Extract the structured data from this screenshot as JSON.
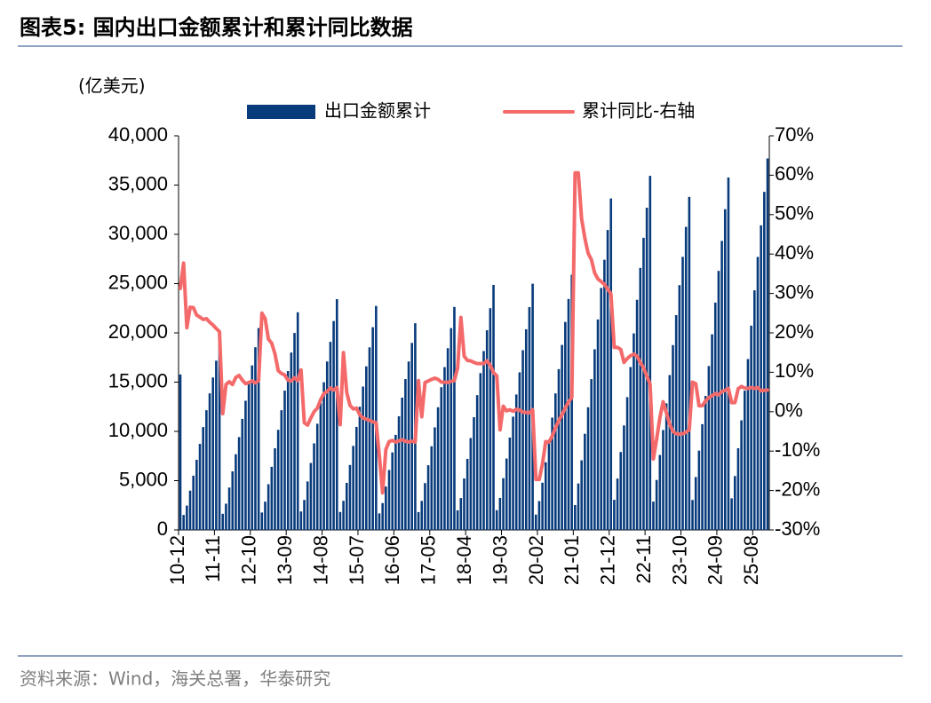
{
  "chart_data": {
    "type": "bar",
    "title": "图表5:  国内出口金额累计和累计同比数据",
    "y_unit": "(亿美元)",
    "source": "资料来源：Wind，海关总署，华泰研究",
    "categories": [
      "10-12",
      null,
      null,
      null,
      null,
      null,
      null,
      null,
      null,
      null,
      null,
      "11-11",
      null,
      null,
      null,
      null,
      null,
      null,
      null,
      null,
      null,
      null,
      "12-10",
      null,
      null,
      null,
      null,
      null,
      null,
      null,
      null,
      null,
      null,
      "13-09",
      null,
      null,
      null,
      null,
      null,
      null,
      null,
      null,
      null,
      null,
      "14-08",
      null,
      null,
      null,
      null,
      null,
      null,
      null,
      null,
      null,
      null,
      "15-07",
      null,
      null,
      null,
      null,
      null,
      null,
      null,
      null,
      null,
      null,
      "16-06",
      null,
      null,
      null,
      null,
      null,
      null,
      null,
      null,
      null,
      null,
      "17-05",
      null,
      null,
      null,
      null,
      null,
      null,
      null,
      null,
      null,
      null,
      "18-04",
      null,
      null,
      null,
      null,
      null,
      null,
      null,
      null,
      null,
      null,
      "19-03",
      null,
      null,
      null,
      null,
      null,
      null,
      null,
      null,
      null,
      null,
      "20-02",
      null,
      null,
      null,
      null,
      null,
      null,
      null,
      null,
      null,
      null,
      "21-01",
      null,
      null,
      null,
      null,
      null,
      null,
      null,
      null,
      null,
      null,
      "21-12",
      null,
      null,
      null,
      null,
      null,
      null,
      null,
      null,
      null,
      null,
      "22-11",
      null,
      null,
      null,
      null,
      null,
      null,
      null,
      null,
      null,
      null,
      "23-10",
      null,
      null,
      null,
      null,
      null,
      null,
      null,
      null,
      null,
      null,
      "24-09",
      null,
      null,
      null,
      null,
      null,
      null,
      null,
      null,
      null,
      null,
      "25-08",
      null,
      null,
      null,
      null
    ],
    "series": [
      {
        "name": "出口金额累计",
        "type": "bar",
        "color": "#083b7c",
        "values": [
          15778,
          1519,
          2468,
          3987,
          5505,
          7119,
          8733,
          10441,
          12150,
          13858,
          15472,
          17181,
          18984,
          1639,
          2663,
          4302,
          5941,
          7683,
          9424,
          11268,
          13112,
          14956,
          16697,
          18541,
          20487,
          1767,
          2872,
          4639,
          6406,
          8284,
          10161,
          12150,
          14138,
          16126,
          18003,
          19991,
          22090,
          1874,
          3045,
          4919,
          6793,
          8784,
          10775,
          12883,
          14991,
          17099,
          19090,
          21198,
          23423,
          1819,
          2956,
          4774,
          6593,
          8526,
          10458,
          12504,
          14550,
          16597,
          18529,
          20575,
          22735,
          1678,
          2727,
          4405,
          6083,
          7866,
          9649,
          11537,
          13425,
          15312,
          17095,
          18983,
          20976,
          1811,
          2942,
          4753,
          6564,
          8487,
          10411,
          12448,
          14485,
          16522,
          18446,
          20483,
          22633,
          1989,
          3233,
          5222,
          7211,
          9325,
          11439,
          13677,
          15915,
          18153,
          20267,
          22505,
          24867,
          2000,
          3249,
          5248,
          7247,
          9371,
          11495,
          13745,
          15994,
          18243,
          20367,
          22616,
          24990,
          1554,
          2927,
          4792,
          6864,
          9065,
          11396,
          13857,
          16317,
          18778,
          21109,
          23440,
          25900,
          2523,
          4710,
          7064,
          9756,
          12447,
          15306,
          18334,
          21361,
          24557,
          27417,
          30444,
          33640,
          3055,
          5211,
          7906,
          10601,
          13476,
          16531,
          19944,
          23358,
          26593,
          29647,
          32702,
          35936,
          2873,
          5070,
          7605,
          10140,
          12844,
          15717,
          18759,
          21801,
          24843,
          27716,
          30758,
          33800,
          3041,
          5366,
          8049,
          10732,
          13593,
          16634,
          19853,
          23073,
          26292,
          29333,
          32553,
          35772,
          3205,
          5467,
          8294,
          11122,
          14138,
          17342,
          20735,
          24317,
          27710,
          30914,
          34307,
          37700
        ]
      },
      {
        "name": "累计同比-右轴",
        "type": "line",
        "axis": "y2",
        "color": "#f46a6a",
        "values": [
          31.3,
          37.7,
          21.3,
          26.5,
          26.4,
          24.5,
          24,
          23.4,
          23.6,
          22.7,
          22,
          21.1,
          20.3,
          -0.5,
          6.9,
          7.6,
          6.9,
          8.7,
          9.2,
          8,
          7.1,
          7.4,
          7.8,
          7.3,
          7.9,
          25,
          23.6,
          18.4,
          17.4,
          14.7,
          10.4,
          9.7,
          9.3,
          8,
          7.8,
          8.6,
          7.9,
          10.6,
          -2.8,
          -3.4,
          -1.6,
          0,
          0.9,
          3,
          4.6,
          5.1,
          6,
          5.5,
          6.1,
          -3.3,
          15,
          4.9,
          1.6,
          0.7,
          0.9,
          -0.8,
          -1.6,
          -1.9,
          -2.2,
          -2.6,
          -2.8,
          -11.2,
          -20.6,
          -9.6,
          -7.6,
          -7.3,
          -7.7,
          -7.4,
          -7.1,
          -7.5,
          -7.7,
          -7.5,
          -7.7,
          7.9,
          -1.3,
          7.4,
          7.8,
          8.2,
          8.5,
          8.2,
          7.5,
          7.5,
          7.4,
          7.7,
          7.9,
          11.1,
          23.9,
          14.1,
          13,
          12.9,
          12.5,
          12.2,
          12.2,
          12.2,
          12.9,
          11.8,
          9.9,
          9.1,
          -4.6,
          1.4,
          0.2,
          0.5,
          0.1,
          0.6,
          0.4,
          -0.1,
          -0.2,
          -0.3,
          0.5,
          -17.2,
          -17.2,
          -13.3,
          -7.6,
          -7.7,
          -6.2,
          -4.1,
          -2.3,
          -0.8,
          0.9,
          2.5,
          3.6,
          60.6,
          60.6,
          49,
          44,
          40.2,
          38.6,
          35.2,
          33.7,
          33,
          32.3,
          31.1,
          29.9,
          16.3,
          16.3,
          15.8,
          12.5,
          13.5,
          14.2,
          14.6,
          14.1,
          12.5,
          11.1,
          9,
          7,
          -12,
          -7,
          -1.5,
          2.5,
          -0.3,
          -3.2,
          -5,
          -5.6,
          -5.7,
          -5.6,
          -5.2,
          -4.6,
          7.5,
          7.1,
          1.5,
          1.5,
          2.7,
          3.6,
          4,
          4.6,
          4.3,
          5.1,
          5.4,
          5.9,
          2.3,
          2.3,
          5.8,
          6.4,
          6,
          5.9,
          6.1,
          5.9,
          6.1,
          5.3,
          5.4,
          5.5
        ]
      }
    ],
    "ylim": [
      0,
      40000
    ],
    "yticks": [
      0,
      {
        "value": 5000,
        "label": "5,000"
      },
      {
        "value": 10000,
        "label": "10,000"
      },
      {
        "value": 15000,
        "label": "15,000"
      },
      {
        "value": 20000,
        "label": "20,000"
      },
      {
        "value": 25000,
        "label": "25,000"
      },
      {
        "value": 30000,
        "label": "30,000"
      },
      {
        "value": 35000,
        "label": "35,000"
      },
      {
        "value": 40000,
        "label": "40,000"
      }
    ],
    "y2lim": [
      -30,
      70
    ],
    "y2ticks": [
      {
        "value": -30,
        "label": "-30%"
      },
      {
        "value": -20,
        "label": "-20%"
      },
      {
        "value": -10,
        "label": "-10%"
      },
      {
        "value": 0,
        "label": "0%"
      },
      {
        "value": 10,
        "label": "10%"
      },
      {
        "value": 20,
        "label": "20%"
      },
      {
        "value": 30,
        "label": "30%"
      },
      {
        "value": 40,
        "label": "40%"
      },
      {
        "value": 50,
        "label": "50%"
      },
      {
        "value": 60,
        "label": "60%"
      },
      {
        "value": 70,
        "label": "70%"
      }
    ],
    "grid": false,
    "legend": "top"
  }
}
